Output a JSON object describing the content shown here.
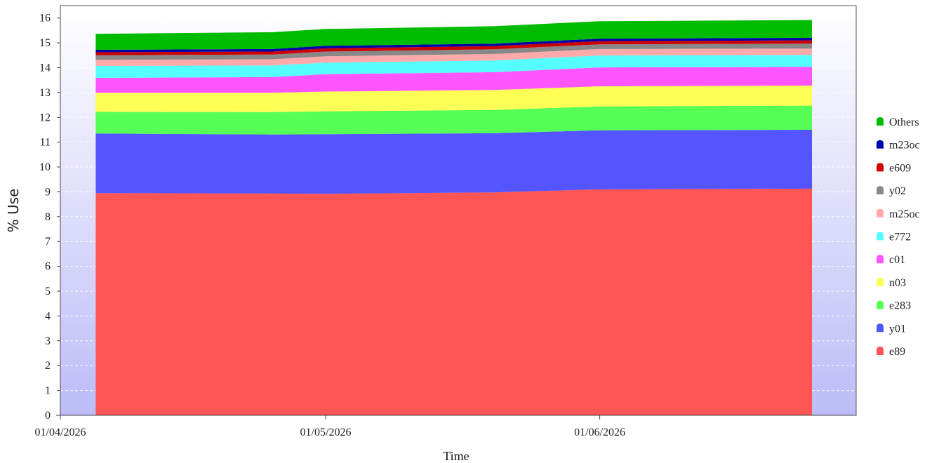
{
  "chart_data": {
    "type": "area",
    "stacked": true,
    "xlabel": "Time",
    "ylabel": "% Use",
    "ylim": [
      0,
      16.5
    ],
    "yticks": [
      0,
      1,
      2,
      3,
      4,
      5,
      6,
      7,
      8,
      9,
      10,
      11,
      12,
      13,
      14,
      15,
      16
    ],
    "xlim": [
      "2026-04-01",
      "2026-06-30"
    ],
    "xticks": [
      "2026-04-01",
      "2026-05-01",
      "2026-06-01"
    ],
    "xtick_labels": [
      "01/04/2026",
      "01/05/2026",
      "01/06/2026"
    ],
    "grid": "horizontal dashed",
    "legend_position": "right",
    "x": [
      "2026-04-05",
      "2026-04-25",
      "2026-05-01",
      "2026-05-20",
      "2026-06-01",
      "2026-06-25"
    ],
    "series": [
      {
        "name": "e89",
        "color": "#ff5555",
        "values": [
          8.95,
          8.93,
          8.92,
          8.98,
          9.1,
          9.13
        ]
      },
      {
        "name": "y01",
        "color": "#5555ff",
        "values": [
          2.4,
          2.38,
          2.4,
          2.38,
          2.38,
          2.37
        ]
      },
      {
        "name": "e283",
        "color": "#55ff55",
        "values": [
          0.87,
          0.9,
          0.92,
          0.94,
          0.96,
          0.97
        ]
      },
      {
        "name": "n03",
        "color": "#ffff55",
        "values": [
          0.77,
          0.78,
          0.8,
          0.8,
          0.81,
          0.81
        ]
      },
      {
        "name": "c01",
        "color": "#ff55ff",
        "values": [
          0.6,
          0.63,
          0.7,
          0.72,
          0.76,
          0.75
        ]
      },
      {
        "name": "e772",
        "color": "#55ffff",
        "values": [
          0.48,
          0.47,
          0.46,
          0.47,
          0.48,
          0.48
        ]
      },
      {
        "name": "m25oc",
        "color": "#ffaaaa",
        "values": [
          0.25,
          0.25,
          0.26,
          0.26,
          0.26,
          0.26
        ]
      },
      {
        "name": "y02",
        "color": "#888888",
        "values": [
          0.18,
          0.19,
          0.19,
          0.19,
          0.19,
          0.2
        ]
      },
      {
        "name": "e609",
        "color": "#cc0000",
        "values": [
          0.12,
          0.12,
          0.13,
          0.13,
          0.13,
          0.13
        ]
      },
      {
        "name": "m23oc",
        "color": "#0000aa",
        "values": [
          0.1,
          0.1,
          0.1,
          0.1,
          0.1,
          0.1
        ]
      },
      {
        "name": "Others",
        "color": "#00bb00",
        "values": [
          0.64,
          0.68,
          0.68,
          0.7,
          0.7,
          0.72
        ]
      }
    ]
  }
}
